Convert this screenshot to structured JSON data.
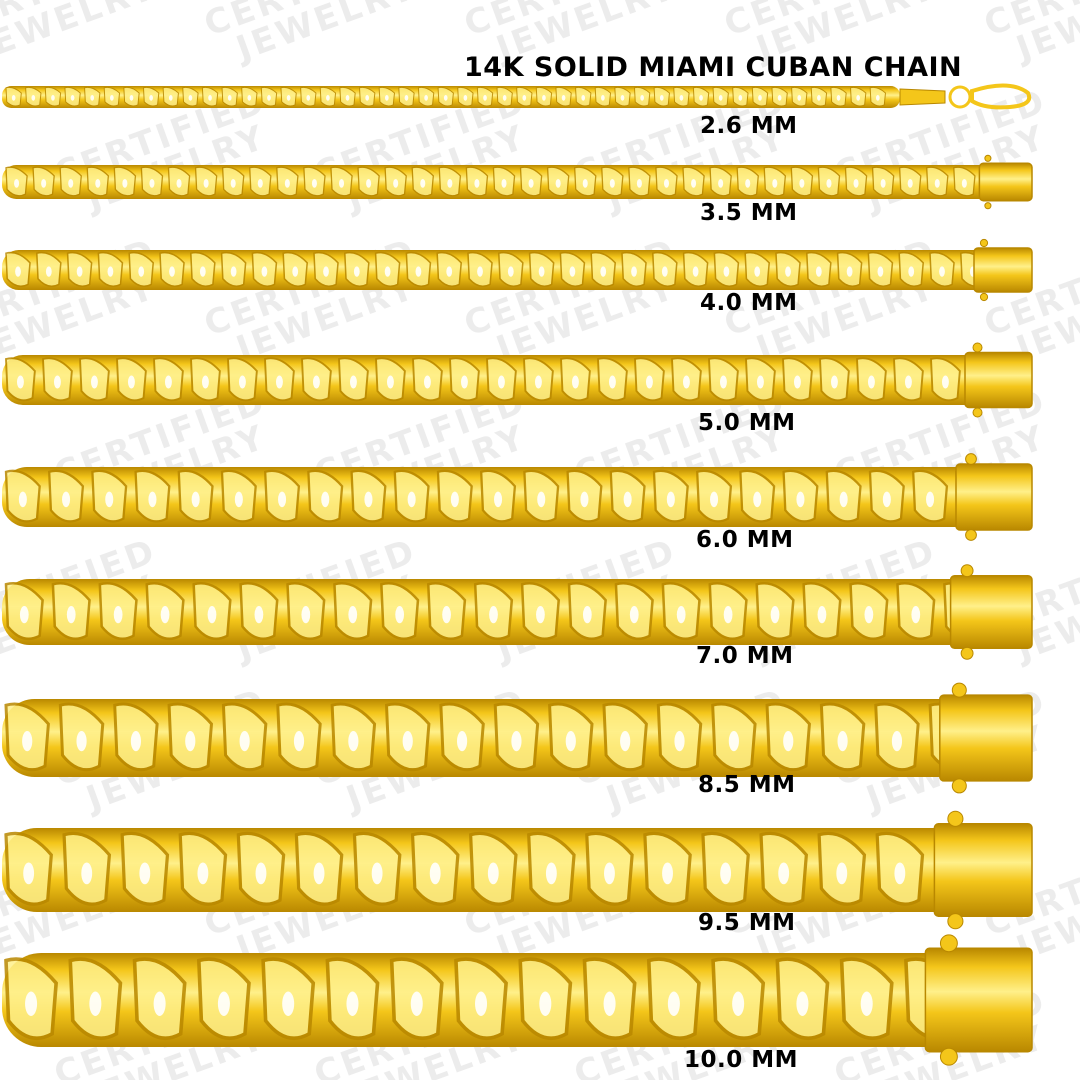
{
  "title": "14K SOLID MIAMI CUBAN CHAIN",
  "watermark": {
    "line1": "CERTIFIED",
    "line2": "JEWELRY"
  },
  "colors": {
    "gold_light": "#FFF08A",
    "gold_mid": "#F4C61A",
    "gold_dark": "#B98800",
    "background": "#FFFFFF",
    "text": "#000000"
  },
  "chains": [
    {
      "label": "2.6 MM",
      "width_mm": 2.6
    },
    {
      "label": "3.5 MM",
      "width_mm": 3.5
    },
    {
      "label": "4.0 MM",
      "width_mm": 4.0
    },
    {
      "label": "5.0 MM",
      "width_mm": 5.0
    },
    {
      "label": "6.0 MM",
      "width_mm": 6.0
    },
    {
      "label": "7.0 MM",
      "width_mm": 7.0
    },
    {
      "label": "8.5 MM",
      "width_mm": 8.5
    },
    {
      "label": "9.5 MM",
      "width_mm": 9.5
    },
    {
      "label": "10.0 MM",
      "width_mm": 10.0
    }
  ]
}
